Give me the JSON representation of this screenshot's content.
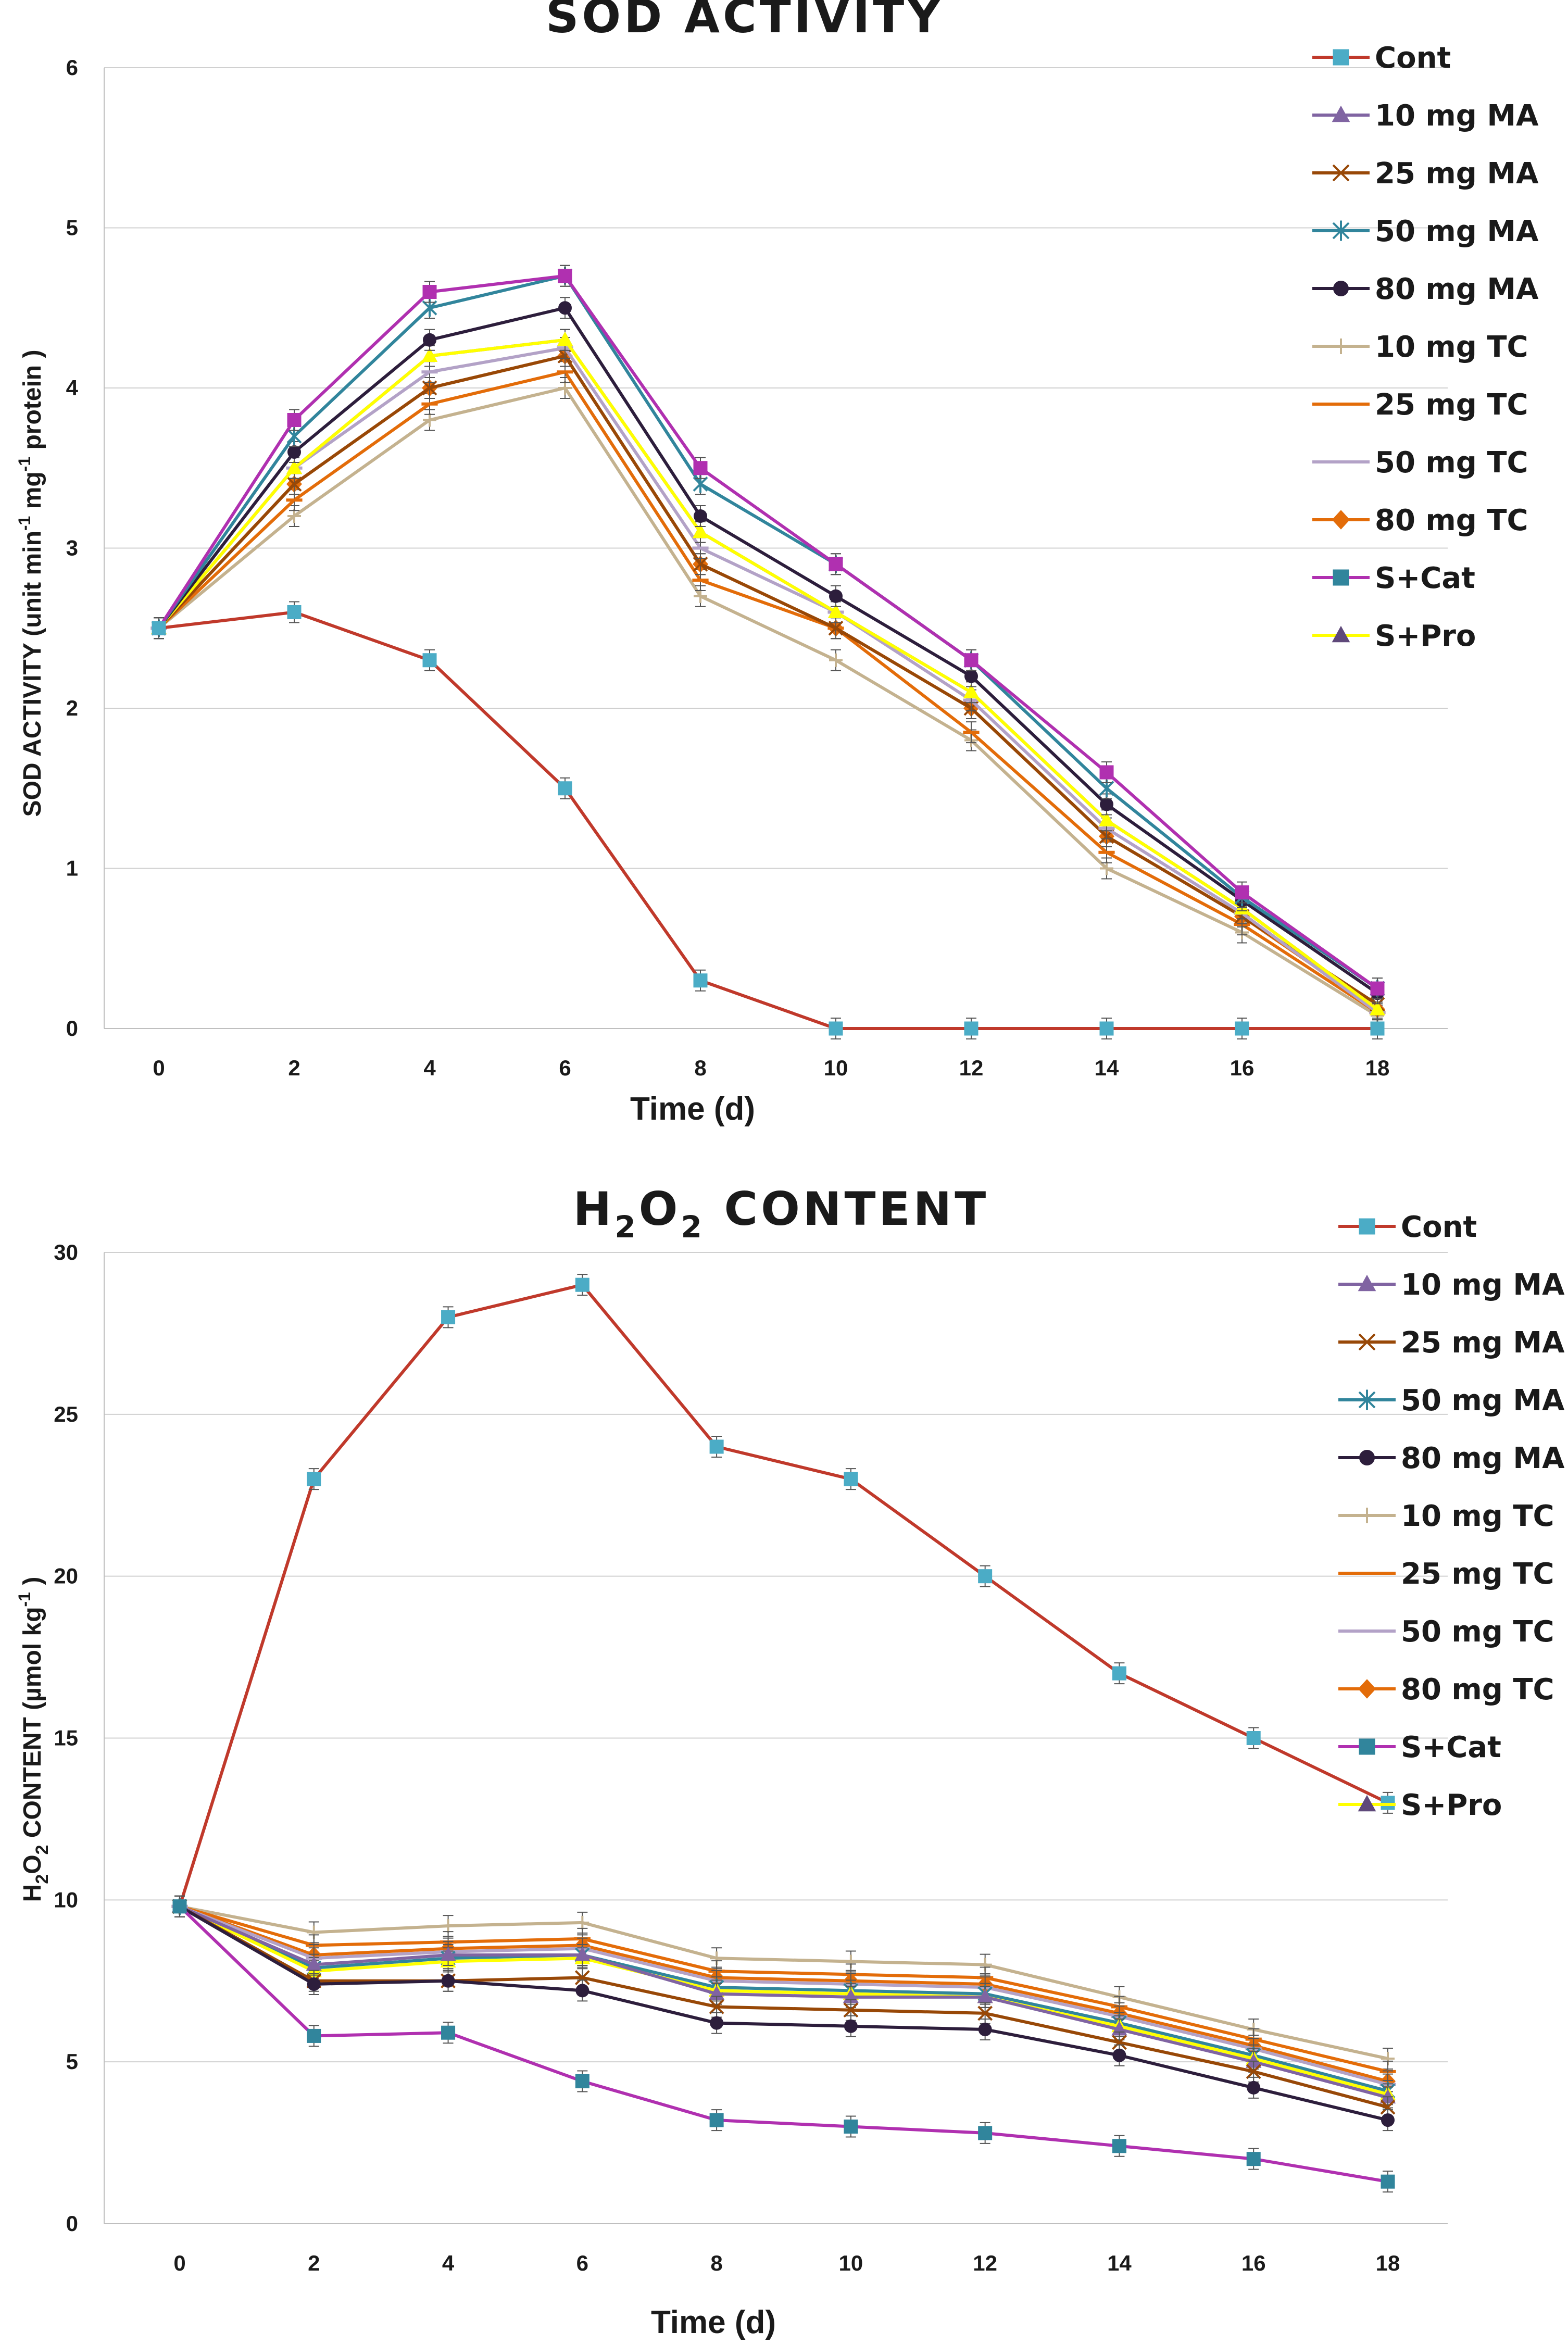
{
  "chart_data": [
    {
      "type": "line",
      "title": "SOD ACTIVITY",
      "xlabel": "Time (d)",
      "ylabel": "SOD ACTIVITY (unit min-1 mg-1 protein)",
      "ylabel_parts": {
        "prefix": "SOD ACTIVITY  (unit min",
        "sup1": "-1",
        "mid": " mg",
        "sup2": "-1",
        "suffix": " protein )"
      },
      "x": [
        0,
        2,
        4,
        6,
        8,
        10,
        12,
        14,
        16,
        18
      ],
      "xticks": [
        "0",
        "2",
        "4",
        "6",
        "8",
        "10",
        "12",
        "14",
        "16",
        "18"
      ],
      "ylim": [
        0,
        6
      ],
      "yticks": [
        "0",
        "1",
        "2",
        "3",
        "4",
        "5",
        "6"
      ],
      "grid": "horizontal",
      "legend_position": "right",
      "series": [
        {
          "name": "10 mg TC",
          "color": "#c4b28f",
          "marker": "plus",
          "values": [
            2.5,
            3.2,
            3.8,
            4.0,
            2.7,
            2.3,
            1.8,
            1.0,
            0.6,
            0.08
          ]
        },
        {
          "name": "25 mg TC",
          "color": "#e36c09",
          "marker": "dash",
          "values": [
            2.5,
            3.3,
            3.9,
            4.1,
            2.8,
            2.5,
            1.85,
            1.1,
            0.65,
            0.1
          ]
        },
        {
          "name": "80 mg TC",
          "color": "#e36c09",
          "marker": "diamond",
          "values": [
            2.5,
            3.4,
            4.0,
            4.2,
            2.9,
            2.5,
            2.0,
            1.2,
            0.7,
            0.12
          ]
        },
        {
          "name": "25 mg MA",
          "color": "#984807",
          "marker": "x",
          "values": [
            2.5,
            3.4,
            4.0,
            4.2,
            2.9,
            2.5,
            2.0,
            1.2,
            0.7,
            0.15
          ]
        },
        {
          "name": "10 mg MA",
          "color": "#8064a2",
          "marker": "triangle",
          "values": [
            2.5,
            3.5,
            4.2,
            4.3,
            3.1,
            2.6,
            2.1,
            1.3,
            0.75,
            0.12
          ]
        },
        {
          "name": "50 mg TC",
          "color": "#b3a2c7",
          "marker": "dash",
          "values": [
            2.5,
            3.5,
            4.1,
            4.25,
            3.0,
            2.6,
            2.05,
            1.25,
            0.72,
            0.1
          ]
        },
        {
          "name": "S+Pro",
          "color": "#ffff00",
          "marker": "triangle",
          "values": [
            2.5,
            3.5,
            4.2,
            4.3,
            3.1,
            2.6,
            2.1,
            1.3,
            0.75,
            0.12
          ]
        },
        {
          "name": "80 mg MA",
          "color": "#2d1e3c",
          "marker": "circle",
          "values": [
            2.5,
            3.6,
            4.3,
            4.5,
            3.2,
            2.7,
            2.2,
            1.4,
            0.8,
            0.22
          ]
        },
        {
          "name": "50 mg MA",
          "color": "#31859c",
          "marker": "asterisk",
          "values": [
            2.5,
            3.7,
            4.5,
            4.7,
            3.4,
            2.9,
            2.3,
            1.5,
            0.82,
            0.25
          ]
        },
        {
          "name": "S+Cat",
          "color": "#b030b0",
          "marker": "square",
          "values": [
            2.5,
            3.8,
            4.6,
            4.7,
            3.5,
            2.9,
            2.3,
            1.6,
            0.85,
            0.25
          ]
        },
        {
          "name": "Cont",
          "color": "#c0392b",
          "marker": "square",
          "markerColor": "#4bacc6",
          "values": [
            2.5,
            2.6,
            2.3,
            1.5,
            0.3,
            0.0,
            0.0,
            0.0,
            0.0,
            0.0
          ]
        }
      ],
      "legend": [
        {
          "name": "Cont",
          "color": "#c0392b",
          "marker": "square",
          "markerColor": "#4bacc6"
        },
        {
          "name": "10 mg MA",
          "color": "#8064a2",
          "marker": "triangle"
        },
        {
          "name": "25 mg MA",
          "color": "#984807",
          "marker": "x"
        },
        {
          "name": "50 mg MA",
          "color": "#31859c",
          "marker": "asterisk"
        },
        {
          "name": "80 mg MA",
          "color": "#2d1e3c",
          "marker": "circle"
        },
        {
          "name": "10 mg TC",
          "color": "#c4b28f",
          "marker": "plus"
        },
        {
          "name": "25 mg TC",
          "color": "#e36c09",
          "marker": "dash"
        },
        {
          "name": "50 mg TC",
          "color": "#b3a2c7",
          "marker": "dash"
        },
        {
          "name": "80 mg TC",
          "color": "#e36c09",
          "marker": "diamond"
        },
        {
          "name": "S+Cat",
          "color": "#b030b0",
          "marker": "square",
          "markerColor": "#31859c"
        },
        {
          "name": "S+Pro",
          "color": "#ffff00",
          "marker": "triangle",
          "markerColor": "#5f497a"
        }
      ]
    },
    {
      "type": "line",
      "title": "H2O2 CONTENT",
      "title_parts": {
        "a": "H",
        "sub1": "2",
        "b": "O",
        "sub2": "2",
        "c": " CONTENT"
      },
      "xlabel": "Time (d)",
      "ylabel": "H2O2 CONTENT (µmol kg-1)",
      "ylabel_parts": {
        "a": "H",
        "sub1": "2",
        "b": "O",
        "sub2": "2",
        "c": " CONTENT  (µmol kg",
        "sup": "-1",
        "d": " )"
      },
      "x": [
        0,
        2,
        4,
        6,
        8,
        10,
        12,
        14,
        16,
        18
      ],
      "xticks": [
        "0",
        "2",
        "4",
        "6",
        "8",
        "10",
        "12",
        "14",
        "16",
        "18"
      ],
      "ylim": [
        0,
        30
      ],
      "yticks": [
        "0",
        "5",
        "10",
        "15",
        "20",
        "25",
        "30"
      ],
      "grid": "horizontal",
      "legend_position": "right",
      "series": [
        {
          "name": "Cont",
          "color": "#c0392b",
          "marker": "square",
          "markerColor": "#4bacc6",
          "values": [
            9.8,
            23.0,
            28.0,
            29.0,
            24.0,
            23.0,
            20.0,
            17.0,
            15.0,
            13.0
          ]
        },
        {
          "name": "10 mg TC",
          "color": "#c4b28f",
          "marker": "plus",
          "values": [
            9.8,
            9.0,
            9.2,
            9.3,
            8.2,
            8.1,
            8.0,
            7.0,
            6.0,
            5.1
          ]
        },
        {
          "name": "25 mg TC",
          "color": "#e36c09",
          "marker": "dash",
          "values": [
            9.8,
            8.6,
            8.7,
            8.8,
            7.8,
            7.7,
            7.6,
            6.7,
            5.7,
            4.7
          ]
        },
        {
          "name": "80 mg TC",
          "color": "#e36c09",
          "marker": "diamond",
          "values": [
            9.8,
            8.3,
            8.5,
            8.6,
            7.6,
            7.5,
            7.4,
            6.5,
            5.5,
            4.4
          ]
        },
        {
          "name": "50 mg TC",
          "color": "#b3a2c7",
          "marker": "dash",
          "values": [
            9.8,
            8.2,
            8.4,
            8.5,
            7.5,
            7.4,
            7.3,
            6.4,
            5.4,
            4.3
          ]
        },
        {
          "name": "50 mg MA",
          "color": "#31859c",
          "marker": "asterisk",
          "values": [
            9.8,
            7.9,
            8.2,
            8.3,
            7.3,
            7.2,
            7.1,
            6.2,
            5.2,
            4.1
          ]
        },
        {
          "name": "S+Pro",
          "color": "#ffff00",
          "marker": "triangle",
          "values": [
            9.8,
            7.8,
            8.1,
            8.2,
            7.2,
            7.1,
            7.0,
            6.1,
            5.1,
            4.0
          ]
        },
        {
          "name": "10 mg MA",
          "color": "#8064a2",
          "marker": "triangle",
          "values": [
            9.8,
            8.0,
            8.3,
            8.3,
            7.1,
            7.0,
            7.0,
            6.0,
            5.0,
            3.9
          ]
        },
        {
          "name": "25 mg MA",
          "color": "#984807",
          "marker": "x",
          "values": [
            9.8,
            7.5,
            7.5,
            7.6,
            6.7,
            6.6,
            6.5,
            5.6,
            4.7,
            3.6
          ]
        },
        {
          "name": "80 mg MA",
          "color": "#2d1e3c",
          "marker": "circle",
          "values": [
            9.8,
            7.4,
            7.5,
            7.2,
            6.2,
            6.1,
            6.0,
            5.2,
            4.2,
            3.2
          ]
        },
        {
          "name": "S+Cat",
          "color": "#b030b0",
          "marker": "square",
          "markerColor": "#31859c",
          "values": [
            9.8,
            5.8,
            5.9,
            4.4,
            3.2,
            3.0,
            2.8,
            2.4,
            2.0,
            1.3
          ]
        }
      ],
      "legend": [
        {
          "name": "Cont",
          "color": "#c0392b",
          "marker": "square",
          "markerColor": "#4bacc6"
        },
        {
          "name": "10 mg MA",
          "color": "#8064a2",
          "marker": "triangle"
        },
        {
          "name": "25 mg MA",
          "color": "#984807",
          "marker": "x"
        },
        {
          "name": "50 mg MA",
          "color": "#31859c",
          "marker": "asterisk"
        },
        {
          "name": "80 mg MA",
          "color": "#2d1e3c",
          "marker": "circle"
        },
        {
          "name": "10 mg TC",
          "color": "#c4b28f",
          "marker": "plus"
        },
        {
          "name": "25 mg TC",
          "color": "#e36c09",
          "marker": "dash"
        },
        {
          "name": "50 mg TC",
          "color": "#b3a2c7",
          "marker": "dash"
        },
        {
          "name": "80 mg TC",
          "color": "#e36c09",
          "marker": "diamond"
        },
        {
          "name": "S+Cat",
          "color": "#b030b0",
          "marker": "square",
          "markerColor": "#31859c"
        },
        {
          "name": "S+Pro",
          "color": "#ffff00",
          "marker": "triangle",
          "markerColor": "#5f497a"
        }
      ]
    }
  ]
}
